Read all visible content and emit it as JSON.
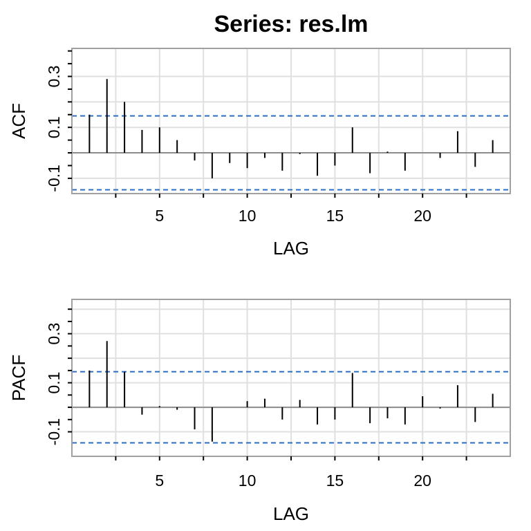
{
  "title": "Series:  res.lm",
  "chart_data": [
    {
      "type": "bar",
      "title": "",
      "xlabel": "LAG",
      "ylabel": "ACF",
      "xlim": [
        0,
        25
      ],
      "ylim": [
        -0.16,
        0.41
      ],
      "x_ticks": [
        5,
        10,
        15,
        20
      ],
      "y_tick_labels": [
        -0.1,
        0.1,
        0.3
      ],
      "grid": true,
      "confidence_band": 0.145,
      "confidence_color": "#2b6cc4",
      "x": [
        1,
        2,
        3,
        4,
        5,
        6,
        7,
        8,
        9,
        10,
        11,
        12,
        13,
        14,
        15,
        16,
        17,
        18,
        19,
        20,
        21,
        22,
        23,
        24
      ],
      "values": [
        0.15,
        0.29,
        0.2,
        0.09,
        0.1,
        0.05,
        -0.03,
        -0.1,
        -0.04,
        -0.06,
        -0.02,
        -0.07,
        -0.005,
        -0.09,
        -0.05,
        0.1,
        -0.08,
        0.005,
        -0.07,
        0.0,
        -0.02,
        0.085,
        -0.055,
        0.05
      ]
    },
    {
      "type": "bar",
      "title": "",
      "xlabel": "LAG",
      "ylabel": "PACF",
      "xlim": [
        0,
        25
      ],
      "ylim": [
        -0.2,
        0.44
      ],
      "x_ticks": [
        5,
        10,
        15,
        20
      ],
      "y_tick_labels": [
        -0.1,
        0.1,
        0.3
      ],
      "grid": true,
      "confidence_band": 0.145,
      "confidence_color": "#2b6cc4",
      "x": [
        1,
        2,
        3,
        4,
        5,
        6,
        7,
        8,
        9,
        10,
        11,
        12,
        13,
        14,
        15,
        16,
        17,
        18,
        19,
        20,
        21,
        22,
        23,
        24
      ],
      "values": [
        0.15,
        0.27,
        0.145,
        -0.03,
        0.005,
        -0.01,
        -0.09,
        -0.14,
        0.0,
        0.025,
        0.035,
        -0.05,
        0.03,
        -0.07,
        -0.05,
        0.14,
        -0.065,
        -0.045,
        -0.07,
        0.045,
        -0.005,
        0.09,
        -0.06,
        0.055
      ]
    }
  ]
}
